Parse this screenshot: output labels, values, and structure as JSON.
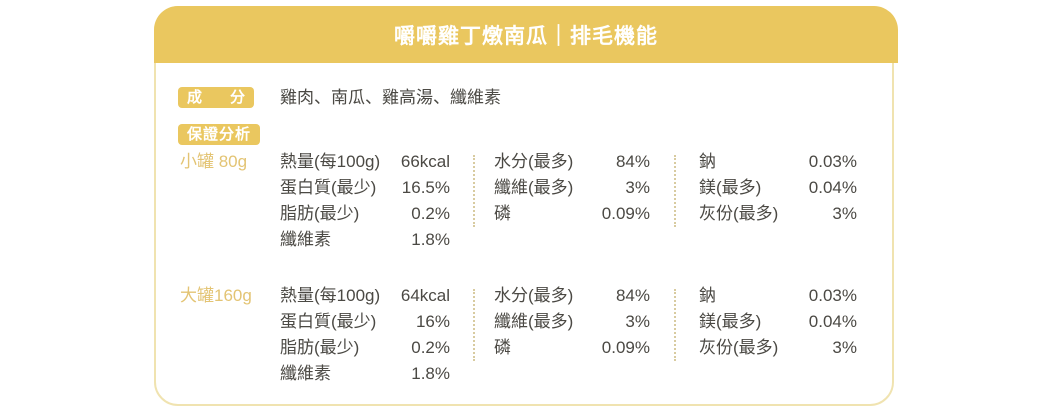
{
  "card": {
    "title": "嚼嚼雞丁燉南瓜｜排毛機能"
  },
  "ingredients": {
    "badge": {
      "char_left": "成",
      "char_right": "分"
    },
    "value": "雞肉、南瓜、雞高湯、纖維素"
  },
  "analysis": {
    "badge_label": "保證分析",
    "sections": [
      {
        "size_label": "小罐 80g",
        "col1": [
          {
            "label": "熱量(每100g)",
            "value": "66kcal"
          },
          {
            "label": "蛋白質(最少)",
            "value": "16.5%"
          },
          {
            "label": "脂肪(最少)",
            "value": "0.2%"
          },
          {
            "label": "纖維素",
            "value": "1.8%"
          }
        ],
        "col2": [
          {
            "label": "水分(最多)",
            "value": "84%"
          },
          {
            "label": "纖維(最多)",
            "value": "3%"
          },
          {
            "label": "磷",
            "value": "0.09%"
          }
        ],
        "col3": [
          {
            "label": "鈉",
            "value": "0.03%"
          },
          {
            "label": "鎂(最多)",
            "value": "0.04%"
          },
          {
            "label": "灰份(最多)",
            "value": "3%"
          }
        ]
      },
      {
        "size_label": "大罐160g",
        "col1": [
          {
            "label": "熱量(每100g)",
            "value": "64kcal"
          },
          {
            "label": "蛋白質(最少)",
            "value": "16%"
          },
          {
            "label": "脂肪(最少)",
            "value": "0.2%"
          },
          {
            "label": "纖維素",
            "value": "1.8%"
          }
        ],
        "col2": [
          {
            "label": "水分(最多)",
            "value": "84%"
          },
          {
            "label": "纖維(最多)",
            "value": "3%"
          },
          {
            "label": "磷",
            "value": "0.09%"
          }
        ],
        "col3": [
          {
            "label": "鈉",
            "value": "0.03%"
          },
          {
            "label": "鎂(最多)",
            "value": "0.04%"
          },
          {
            "label": "灰份(最多)",
            "value": "3%"
          }
        ]
      }
    ]
  },
  "colors": {
    "primary_yellow": "#eac75f",
    "pale_border": "#f0e3b0",
    "divider_dots": "#d8cba0",
    "gold_text": "#e3c474",
    "body_text": "#4b4944"
  }
}
